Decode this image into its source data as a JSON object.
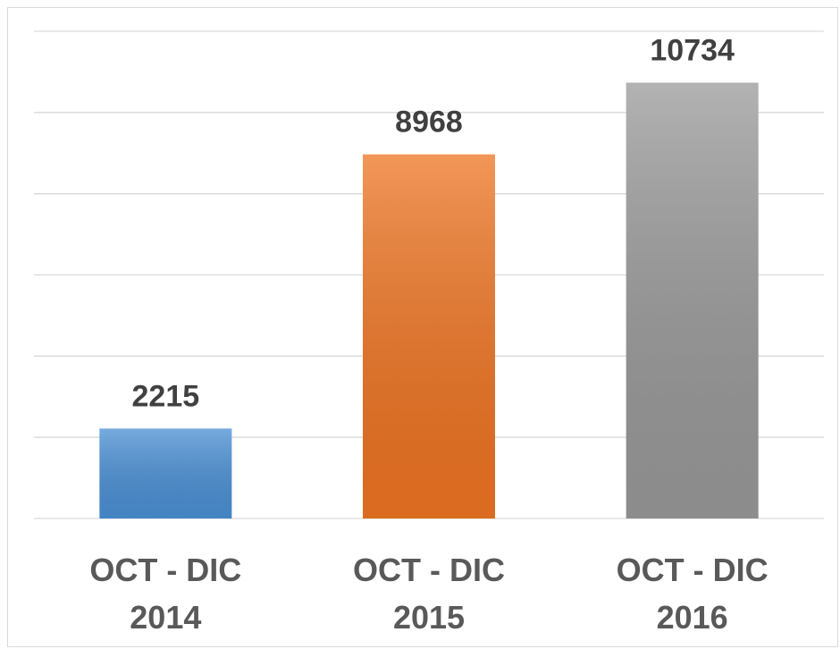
{
  "chart_data": {
    "type": "bar",
    "categories": [
      "OCT - DIC 2014",
      "OCT - DIC 2015",
      "OCT - DIC 2016"
    ],
    "values": [
      2215,
      8968,
      10734
    ],
    "colors": [
      "#4a8fd4",
      "#ee7422",
      "#999999"
    ],
    "ylim": [
      0,
      12000
    ],
    "yticks": [
      0,
      2000,
      4000,
      6000,
      8000,
      10000,
      12000
    ],
    "grid": true,
    "data_labels": true
  }
}
